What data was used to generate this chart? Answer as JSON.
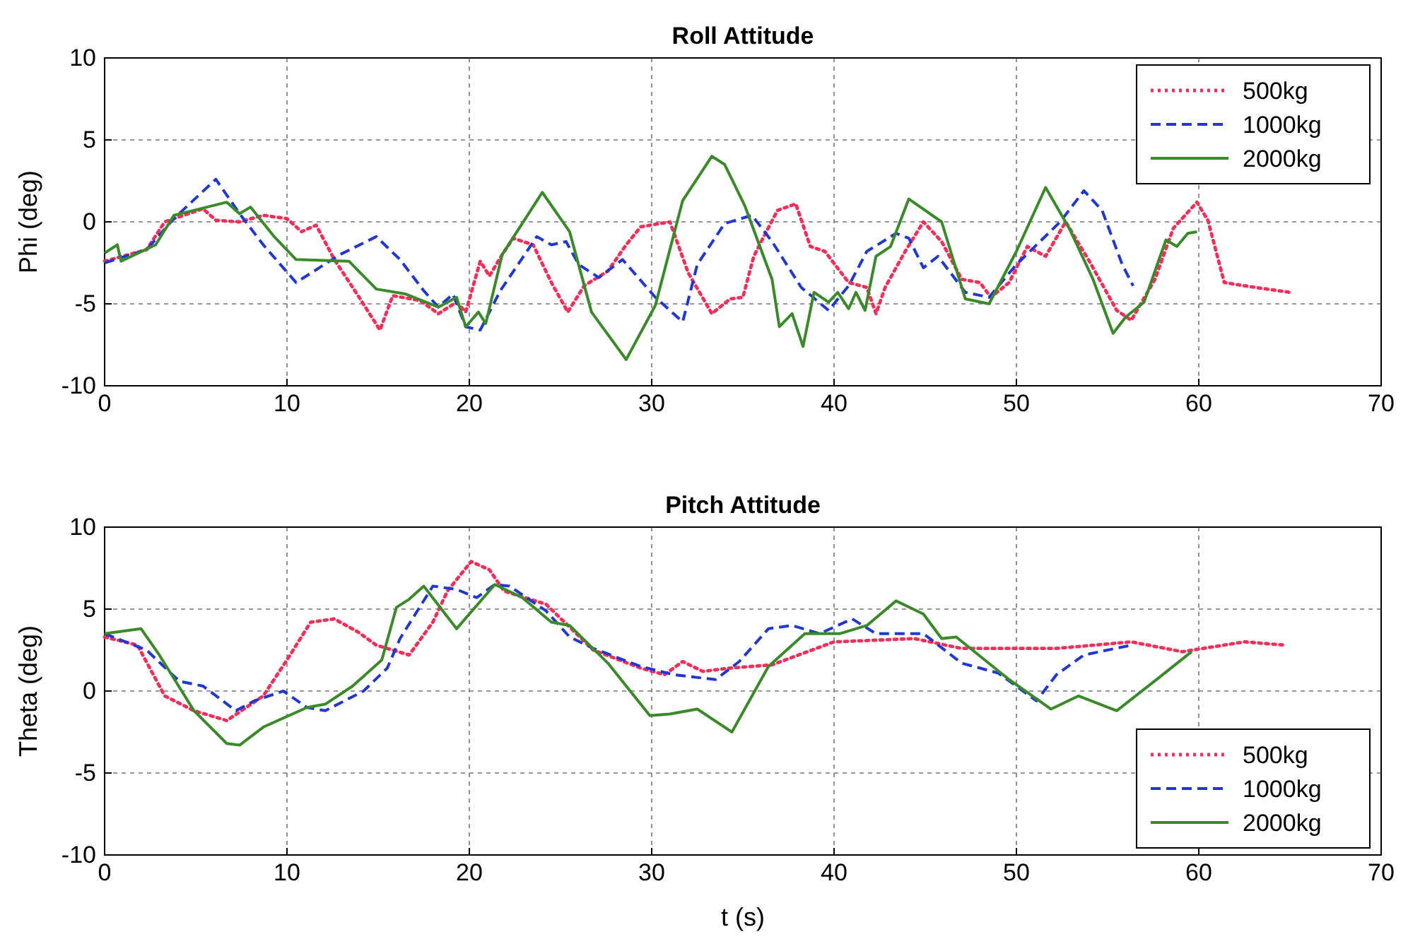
{
  "chart_data": [
    {
      "type": "line",
      "title": "Roll Attitude",
      "ylabel": "Phi (deg)",
      "xlim": [
        0,
        70
      ],
      "xticks": [
        0,
        10,
        20,
        30,
        40,
        50,
        60,
        70
      ],
      "ylim": [
        -10,
        10
      ],
      "yticks": [
        -10,
        -5,
        0,
        5,
        10
      ],
      "grid": true,
      "legend": "top right",
      "marker": "none",
      "series": [
        {
          "name": "500kg",
          "color": "#f0305a",
          "line_style": "dotted",
          "x": [
            0,
            2.3,
            3.3,
            5.4,
            6.1,
            7.4,
            8.7,
            10,
            10.8,
            11.6,
            12.6,
            13.9,
            15.1,
            15.8,
            17.3,
            18.3,
            19.3,
            19.8,
            20.6,
            21.1,
            21.8,
            22.4,
            23.5,
            24.5,
            25.4,
            26.3,
            27.6,
            28.6,
            29.4,
            31,
            32,
            33.3,
            34.3,
            35,
            35.6,
            36.1,
            36.9,
            37.9,
            38.7,
            39.5,
            40.8,
            41.8,
            42.3,
            42.8,
            43.9,
            44.9,
            45.9,
            47,
            48,
            48.6,
            49.6,
            50.6,
            51.6,
            52.7,
            54,
            55.5,
            56.3,
            57.6,
            58.6,
            59.9,
            60.5,
            61.4,
            62.5,
            65
          ],
          "values": [
            -2.4,
            -1.7,
            0,
            0.8,
            0.1,
            0,
            0.4,
            0.2,
            -0.6,
            -0.2,
            -2.3,
            -4.5,
            -6.6,
            -4.5,
            -4.8,
            -5.6,
            -4.9,
            -5.5,
            -2.4,
            -3.3,
            -2,
            -1,
            -1.4,
            -3.7,
            -5.5,
            -3.9,
            -3,
            -1.4,
            -0.3,
            0,
            -3.1,
            -5.6,
            -4.7,
            -4.6,
            -2.1,
            -1,
            0.7,
            1.1,
            -1.5,
            -1.8,
            -3.7,
            -4,
            -5.6,
            -4,
            -1.8,
            0,
            -1.2,
            -3.5,
            -3.7,
            -4.6,
            -3.7,
            -1.5,
            -2.1,
            0,
            -2.4,
            -5.4,
            -6,
            -3.5,
            -0.4,
            1.2,
            0.1,
            -3.7,
            -3.9,
            -4.3
          ]
        },
        {
          "name": "1000kg",
          "color": "#2038d0",
          "line_style": "dashed",
          "x": [
            0,
            2.3,
            3.8,
            6.1,
            7.4,
            8.7,
            10.5,
            12.9,
            14.9,
            16.2,
            17.5,
            18.3,
            19.1,
            19.8,
            20.6,
            21.7,
            23.7,
            24.5,
            25.3,
            26,
            27.1,
            28.4,
            30.2,
            31.7,
            32.5,
            34,
            35.5,
            36.6,
            38.2,
            39.7,
            40.8,
            41.8,
            43.4,
            44.1,
            44.9,
            45.7,
            47.2,
            48.5,
            50,
            52.4,
            53.7,
            54.7,
            55.8,
            56.4
          ],
          "values": [
            -2.5,
            -1.7,
            0.2,
            2.6,
            0.5,
            -1.4,
            -3.7,
            -2,
            -0.9,
            -2.3,
            -4.2,
            -5.2,
            -4.4,
            -6.4,
            -6.6,
            -4.2,
            -0.9,
            -1.4,
            -1.2,
            -2.6,
            -3.4,
            -2.3,
            -4.6,
            -6.1,
            -2.6,
            -0.1,
            0.4,
            -1.2,
            -4,
            -5.4,
            -3.9,
            -1.8,
            -0.7,
            -1,
            -2.8,
            -2.1,
            -4.3,
            -4.6,
            -2.6,
            0,
            1.9,
            0.7,
            -2.6,
            -3.9
          ]
        },
        {
          "name": "2000kg",
          "color": "#3a8a2a",
          "line_style": "solid",
          "x": [
            0,
            0.7,
            0.9,
            2.8,
            3.8,
            6.7,
            7.4,
            8,
            9.3,
            10.5,
            13.4,
            14.9,
            16.5,
            18.3,
            19.3,
            19.8,
            20.5,
            20.9,
            21.8,
            24,
            25.5,
            26.7,
            28.6,
            30.2,
            31.7,
            33.3,
            34,
            35.1,
            36.6,
            37,
            37.7,
            38.3,
            38.9,
            39.7,
            40.2,
            40.8,
            41.2,
            41.7,
            42.3,
            43.1,
            44.1,
            45.9,
            47.2,
            48.5,
            50,
            51.6,
            52.9,
            54.2,
            55.3,
            56,
            57,
            58.2,
            58.8,
            59.4,
            59.9
          ],
          "values": [
            -1.9,
            -1.4,
            -2.4,
            -1.4,
            0.4,
            1.2,
            0.5,
            0.9,
            -0.9,
            -2.3,
            -2.4,
            -4.1,
            -4.4,
            -5.2,
            -4.6,
            -6.4,
            -5.5,
            -6.2,
            -2,
            1.8,
            -0.6,
            -5.5,
            -8.4,
            -5.1,
            1.3,
            4,
            3.5,
            1,
            -3.5,
            -6.4,
            -5.6,
            -7.6,
            -4.3,
            -4.9,
            -4.3,
            -5.3,
            -4.3,
            -5.4,
            -2.1,
            -1.5,
            1.4,
            0,
            -4.7,
            -5,
            -1.8,
            2.1,
            -0.4,
            -3.5,
            -6.8,
            -5.8,
            -4.9,
            -1.1,
            -1.5,
            -0.7,
            -0.6
          ]
        }
      ]
    },
    {
      "type": "line",
      "title": "Pitch Attitude",
      "ylabel": "Theta (deg)",
      "xlabel": "t (s)",
      "xlim": [
        0,
        70
      ],
      "xticks": [
        0,
        10,
        20,
        30,
        40,
        50,
        60,
        70
      ],
      "ylim": [
        -10,
        10
      ],
      "yticks": [
        -10,
        -5,
        0,
        5,
        10
      ],
      "grid": true,
      "legend": "bottom right",
      "marker": "none",
      "series": [
        {
          "name": "500kg",
          "color": "#f0305a",
          "line_style": "dotted",
          "x": [
            0,
            1.8,
            3.3,
            4.9,
            6.7,
            8.7,
            10,
            11.3,
            12.6,
            13.9,
            14.9,
            16.7,
            18,
            18.8,
            20.1,
            21.1,
            21.9,
            24.2,
            25.5,
            26.8,
            29.4,
            30.7,
            31.7,
            32.8,
            34.3,
            36.6,
            40,
            44.4,
            47,
            52.2,
            56.3,
            59.1,
            62.5,
            64.8
          ],
          "values": [
            3.3,
            2.8,
            -0.3,
            -1.2,
            -1.8,
            -0.3,
            1.9,
            4.2,
            4.4,
            3.6,
            2.8,
            2.2,
            4.2,
            6.1,
            7.9,
            7.4,
            6.1,
            5.3,
            3.9,
            2.5,
            1.4,
            1,
            1.8,
            1.2,
            1.4,
            1.6,
            3,
            3.2,
            2.6,
            2.6,
            3,
            2.4,
            3,
            2.8
          ]
        },
        {
          "name": "1000kg",
          "color": "#2038d0",
          "line_style": "dashed",
          "x": [
            0,
            2.3,
            4.1,
            5.4,
            7.2,
            8.2,
            9.8,
            11.1,
            12.1,
            14.2,
            15.5,
            16.2,
            18,
            19.3,
            20.4,
            21.4,
            22.2,
            24.2,
            25.5,
            26.8,
            29.4,
            31.2,
            33.5,
            34.8,
            36.4,
            37.7,
            39.2,
            41,
            42.3,
            44.9,
            47,
            49,
            51.1,
            52.2,
            53.7,
            56.3
          ],
          "values": [
            3.5,
            2.5,
            0.6,
            0.3,
            -1.2,
            -0.6,
            0,
            -1,
            -1.2,
            0,
            1.4,
            3.2,
            6.4,
            6.2,
            5.7,
            6.5,
            6.4,
            4.9,
            3.3,
            2.6,
            1.5,
            1,
            0.7,
            1.8,
            3.8,
            4,
            3.5,
            4.4,
            3.5,
            3.5,
            1.7,
            1.1,
            -0.6,
            1,
            2.2,
            2.8
          ]
        },
        {
          "name": "2000kg",
          "color": "#3a8a2a",
          "line_style": "solid",
          "x": [
            0,
            2,
            3,
            4.9,
            6.7,
            7.4,
            8.7,
            11.1,
            12.1,
            13.6,
            15.2,
            16,
            16.7,
            17.5,
            19.3,
            21.4,
            22.9,
            24.5,
            25.5,
            27.6,
            29.9,
            31,
            32.5,
            34.4,
            36.4,
            38.4,
            40.3,
            41.8,
            43.4,
            44.9,
            45.9,
            46.7,
            49.6,
            51.9,
            53.4,
            55.5,
            57.8,
            59.6
          ],
          "values": [
            3.5,
            3.8,
            2.2,
            -1.2,
            -3.2,
            -3.3,
            -2.2,
            -1,
            -0.8,
            0.3,
            1.9,
            5.1,
            5.6,
            6.4,
            3.8,
            6.5,
            5.7,
            4.2,
            4,
            1.7,
            -1.5,
            -1.4,
            -1.1,
            -2.5,
            1.5,
            3.5,
            3.5,
            4,
            5.5,
            4.7,
            3.2,
            3.3,
            0.7,
            -1.1,
            -0.3,
            -1.2,
            0.8,
            2.4
          ]
        }
      ]
    }
  ]
}
